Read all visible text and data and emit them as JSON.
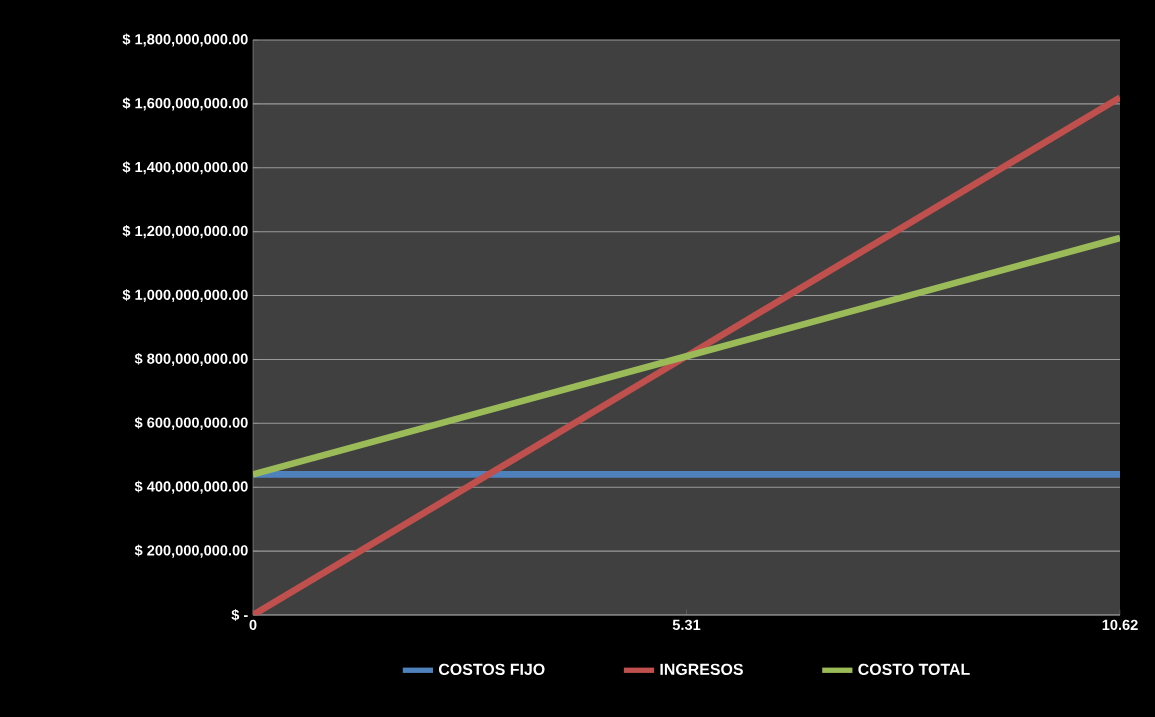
{
  "chart_data": {
    "type": "line",
    "x": [
      0,
      5.31,
      10.62
    ],
    "series": [
      {
        "name": "COSTOS FIJO",
        "color": "#4f81bd",
        "values": [
          440000000,
          440000000,
          440000000
        ]
      },
      {
        "name": "INGRESOS",
        "color": "#c0504d",
        "values": [
          0,
          810000000,
          1620000000
        ]
      },
      {
        "name": "COSTO TOTAL",
        "color": "#9bbb59",
        "values": [
          440000000,
          810000000,
          1180000000
        ]
      }
    ],
    "xlim": [
      0,
      10.62
    ],
    "xticks": [
      0,
      5.31,
      10.62
    ],
    "ylim": [
      0,
      1800000000
    ],
    "yticks": [
      {
        "value": 0,
        "label": "$ -"
      },
      {
        "value": 200000000,
        "label": "$ 200,000,000.00"
      },
      {
        "value": 400000000,
        "label": "$ 400,000,000.00"
      },
      {
        "value": 600000000,
        "label": "$ 600,000,000.00"
      },
      {
        "value": 800000000,
        "label": "$ 800,000,000.00"
      },
      {
        "value": 1000000000,
        "label": "$ 1,000,000,000.00"
      },
      {
        "value": 1200000000,
        "label": "$ 1,200,000,000.00"
      },
      {
        "value": 1400000000,
        "label": "$ 1,400,000,000.00"
      },
      {
        "value": 1600000000,
        "label": "$ 1,600,000,000.00"
      },
      {
        "value": 1800000000,
        "label": "$ 1,800,000,000.00"
      }
    ],
    "grid": "y",
    "legend": "bottom",
    "marker": "none",
    "line_style": "solid"
  }
}
